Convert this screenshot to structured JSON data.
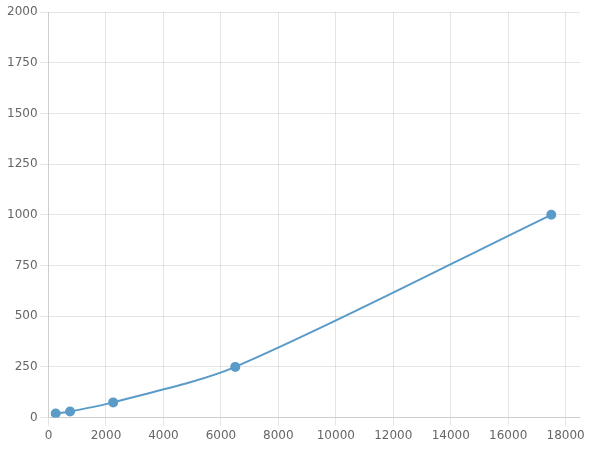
{
  "chart_data": {
    "type": "line",
    "x": [
      250,
      750,
      2250,
      6500,
      17500
    ],
    "values": [
      20,
      30,
      75,
      250,
      1000
    ],
    "color": "#5b9bc8",
    "marker": "circle",
    "xlim": [
      0,
      18500
    ],
    "ylim": [
      0,
      2000
    ],
    "xticks": [
      0,
      2000,
      4000,
      6000,
      8000,
      10000,
      12000,
      14000,
      16000,
      18000
    ],
    "yticks": [
      0,
      250,
      500,
      750,
      1000,
      1250,
      1500,
      1750,
      2000
    ],
    "grid": true
  }
}
